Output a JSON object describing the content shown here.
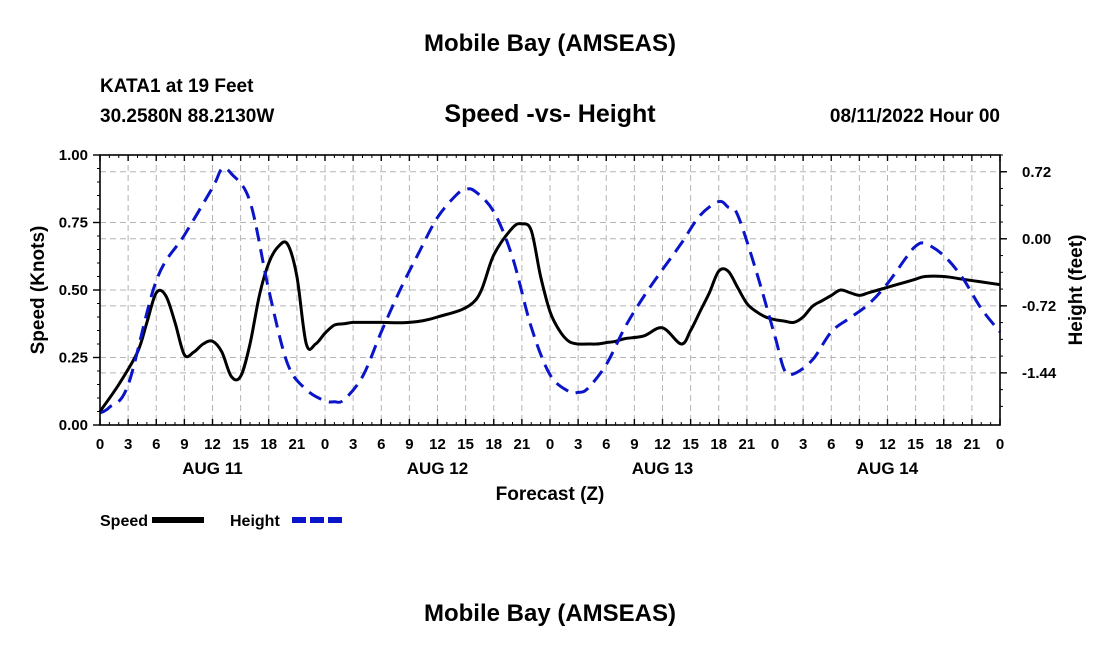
{
  "page": {
    "title": "Mobile Bay (AMSEAS)",
    "station": "KATA1 at 19 Feet",
    "coords": "30.2580N  88.2130W",
    "run_time": "08/11/2022 Hour 00",
    "footer_title": "Mobile Bay (AMSEAS)"
  },
  "chart_data": {
    "type": "line",
    "title": "Speed -vs- Height",
    "xlabel": "Forecast (Z)",
    "ylabel_left": "Speed (Knots)",
    "ylabel_right": "Height (feet)",
    "grid": true,
    "xlim": [
      0,
      96
    ],
    "x_ticks": [
      0,
      3,
      6,
      9,
      12,
      15,
      18,
      21,
      24,
      27,
      30,
      33,
      36,
      39,
      42,
      45,
      48,
      51,
      54,
      57,
      60,
      63,
      66,
      69,
      72,
      75,
      78,
      81,
      84,
      87,
      90,
      93,
      96
    ],
    "x_tick_labels": [
      "0",
      "3",
      "6",
      "9",
      "12",
      "15",
      "18",
      "21",
      "0",
      "3",
      "6",
      "9",
      "12",
      "15",
      "18",
      "21",
      "0",
      "3",
      "6",
      "9",
      "12",
      "15",
      "18",
      "21",
      "0",
      "3",
      "6",
      "9",
      "12",
      "15",
      "18",
      "21",
      "0"
    ],
    "date_labels": [
      {
        "x": 12,
        "label": "AUG 11"
      },
      {
        "x": 36,
        "label": "AUG 12"
      },
      {
        "x": 60,
        "label": "AUG 13"
      },
      {
        "x": 84,
        "label": "AUG 14"
      }
    ],
    "y_left": {
      "lim": [
        0,
        1
      ],
      "ticks": [
        0,
        0.25,
        0.5,
        0.75,
        1.0
      ],
      "tick_labels": [
        "0.00",
        "0.25",
        "0.50",
        "0.75",
        "1.00"
      ]
    },
    "y_right": {
      "lim": [
        -2.0,
        0.9
      ],
      "ticks": [
        0.72,
        0.0,
        -0.72,
        -1.44
      ],
      "tick_labels": [
        "0.72",
        "0.00",
        "-0.72",
        "-1.44"
      ]
    },
    "legend": [
      {
        "label": "Speed",
        "color": "#000000",
        "dash": false
      },
      {
        "label": "Height",
        "color": "#0a14c8",
        "dash": true
      }
    ],
    "series": [
      {
        "name": "Speed",
        "axis": "left",
        "color": "#000000",
        "dashed": false,
        "x": [
          0,
          2,
          4,
          5,
          6,
          7,
          8,
          9,
          10,
          11,
          12,
          13,
          14,
          15,
          16,
          17,
          18,
          19,
          20,
          21,
          22,
          23,
          24,
          25,
          26,
          27,
          28,
          30,
          33,
          36,
          40,
          42,
          44,
          45,
          46,
          47,
          48,
          49,
          50,
          51,
          52,
          53,
          54,
          55,
          56,
          58,
          60,
          62,
          63,
          64,
          65,
          66,
          67,
          68,
          69,
          70,
          71,
          72,
          73,
          74,
          75,
          76,
          77,
          78,
          79,
          80,
          81,
          82,
          83,
          84,
          85,
          86,
          87,
          88,
          90,
          92,
          94,
          96
        ],
        "values": [
          0.05,
          0.15,
          0.27,
          0.38,
          0.49,
          0.48,
          0.38,
          0.26,
          0.27,
          0.3,
          0.31,
          0.27,
          0.18,
          0.18,
          0.3,
          0.48,
          0.6,
          0.66,
          0.67,
          0.55,
          0.3,
          0.3,
          0.34,
          0.37,
          0.375,
          0.38,
          0.38,
          0.38,
          0.38,
          0.4,
          0.46,
          0.63,
          0.73,
          0.745,
          0.72,
          0.55,
          0.42,
          0.35,
          0.31,
          0.3,
          0.3,
          0.3,
          0.305,
          0.31,
          0.32,
          0.33,
          0.36,
          0.3,
          0.35,
          0.42,
          0.49,
          0.57,
          0.57,
          0.51,
          0.45,
          0.42,
          0.4,
          0.39,
          0.385,
          0.38,
          0.4,
          0.44,
          0.46,
          0.48,
          0.5,
          0.49,
          0.48,
          0.49,
          0.5,
          0.51,
          0.52,
          0.53,
          0.54,
          0.55,
          0.55,
          0.54,
          0.53,
          0.52
        ]
      },
      {
        "name": "Height",
        "axis": "right",
        "color": "#0a14c8",
        "dashed": true,
        "x": [
          0,
          1,
          3,
          6,
          9,
          12,
          13,
          14,
          16,
          18,
          20,
          22,
          24,
          25,
          26,
          28,
          30,
          32,
          34,
          36,
          38,
          39,
          40,
          42,
          44,
          46,
          48,
          50,
          51,
          52,
          54,
          56,
          58,
          60,
          62,
          64,
          66,
          67,
          68,
          70,
          72,
          73,
          74,
          76,
          78,
          80,
          82,
          84,
          86,
          87,
          88,
          90,
          92,
          94,
          96
        ],
        "values": [
          -1.87,
          -1.81,
          -1.57,
          -0.45,
          0.04,
          0.55,
          0.75,
          0.7,
          0.4,
          -0.55,
          -1.34,
          -1.62,
          -1.74,
          -1.75,
          -1.73,
          -1.48,
          -1.0,
          -0.55,
          -0.15,
          0.23,
          0.47,
          0.53,
          0.51,
          0.29,
          -0.2,
          -0.95,
          -1.46,
          -1.64,
          -1.65,
          -1.61,
          -1.35,
          -0.95,
          -0.62,
          -0.33,
          -0.05,
          0.25,
          0.4,
          0.34,
          0.26,
          -0.35,
          -1.05,
          -1.41,
          -1.45,
          -1.3,
          -1.0,
          -0.85,
          -0.7,
          -0.48,
          -0.2,
          -0.08,
          -0.05,
          -0.18,
          -0.42,
          -0.75,
          -1.0
        ]
      }
    ]
  }
}
